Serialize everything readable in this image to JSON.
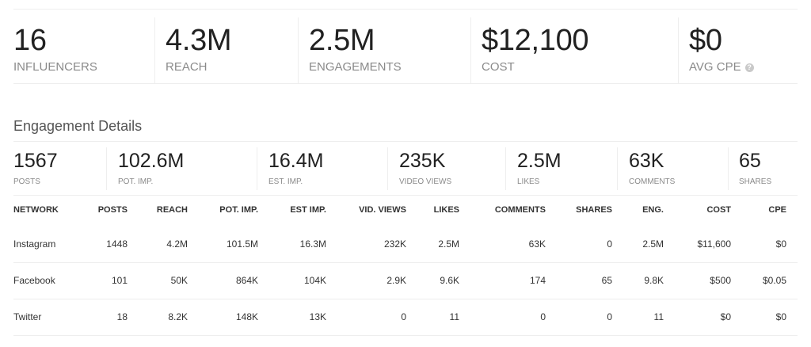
{
  "summary": [
    {
      "value": "16",
      "label": "INFLUENCERS"
    },
    {
      "value": "4.3M",
      "label": "REACH"
    },
    {
      "value": "2.5M",
      "label": "ENGAGEMENTS"
    },
    {
      "value": "$12,100",
      "label": "COST"
    },
    {
      "value": "$0",
      "label": "AVG CPE",
      "icon": "help-icon"
    }
  ],
  "section_title": "Engagement Details",
  "stats": [
    {
      "value": "1567",
      "label": "POSTS"
    },
    {
      "value": "102.6M",
      "label": "POT. IMP."
    },
    {
      "value": "16.4M",
      "label": "EST. IMP."
    },
    {
      "value": "235K",
      "label": "VIDEO VIEWS"
    },
    {
      "value": "2.5M",
      "label": "LIKES"
    },
    {
      "value": "63K",
      "label": "COMMENTS"
    },
    {
      "value": "65",
      "label": "SHARES"
    }
  ],
  "table": {
    "headers": [
      "NETWORK",
      "POSTS",
      "REACH",
      "POT. IMP.",
      "EST IMP.",
      "VID. VIEWS",
      "LIKES",
      "COMMENTS",
      "SHARES",
      "ENG.",
      "COST",
      "CPE"
    ],
    "rows": [
      [
        "Instagram",
        "1448",
        "4.2M",
        "101.5M",
        "16.3M",
        "232K",
        "2.5M",
        "63K",
        "0",
        "2.5M",
        "$11,600",
        "$0"
      ],
      [
        "Facebook",
        "101",
        "50K",
        "864K",
        "104K",
        "2.9K",
        "9.6K",
        "174",
        "65",
        "9.8K",
        "$500",
        "$0.05"
      ],
      [
        "Twitter",
        "18",
        "8.2K",
        "148K",
        "13K",
        "0",
        "11",
        "0",
        "0",
        "11",
        "$0",
        "$0"
      ]
    ]
  }
}
